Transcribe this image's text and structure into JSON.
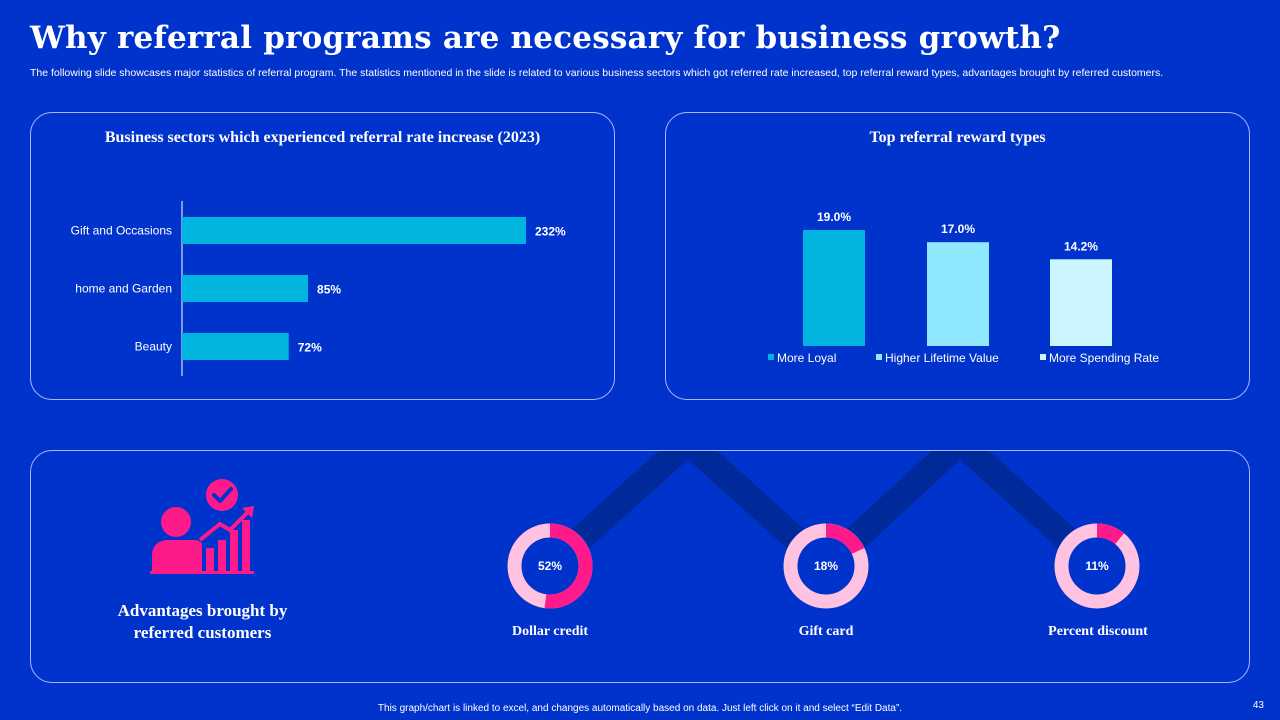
{
  "header": {
    "title": "Why referral programs are necessary for business growth?",
    "subtitle": "The following slide showcases major statistics of referral program. The statistics mentioned in the slide is related to various business sectors which got referred rate increased, top referral reward types, advantages brought by referred customers."
  },
  "colors": {
    "background": "#0033cc",
    "bar_primary": "#00b4e0",
    "bar_secondary": "#8fe8ff",
    "bar_tertiary": "#ccf6ff",
    "donut_accent": "#ff1a8c",
    "donut_base": "#ffc2e0",
    "connector": "#002a99"
  },
  "chart_data": [
    {
      "type": "bar",
      "orientation": "horizontal",
      "title": "Business sectors which experienced referral rate increase (2023)",
      "categories": [
        "Gift and Occasions",
        "home and Garden",
        "Beauty"
      ],
      "values": [
        232,
        85,
        72
      ],
      "value_labels": [
        "232%",
        "85%",
        "72%"
      ],
      "xlim": [
        0,
        232
      ]
    },
    {
      "type": "bar",
      "title": "Top referral reward types",
      "categories": [
        "More Loyal",
        "Higher Lifetime Value",
        "More Spending Rate"
      ],
      "values": [
        19.0,
        17.0,
        14.2
      ],
      "value_labels": [
        "19.0%",
        "17.0%",
        "14.2%"
      ],
      "series_colors": [
        "#00b4e0",
        "#8fe8ff",
        "#ccf6ff"
      ],
      "legend": "bottom",
      "ylim": [
        0,
        19.0
      ]
    },
    {
      "type": "pie",
      "variant": "donut",
      "title": "Advantages brought by referred customers",
      "categories": [
        "Dollar credit",
        "Gift card",
        "Percent discount"
      ],
      "values": [
        52,
        18,
        11
      ],
      "value_labels": [
        "52%",
        "18%",
        "11%"
      ]
    }
  ],
  "advantages": {
    "label": "Advantages brought by referred customers",
    "icon": "person-growth-chart-check-icon"
  },
  "footer": {
    "note": "This graph/chart is linked to excel, and changes automatically based on data. Just left click on it and select “Edit Data”.",
    "page": "43"
  }
}
